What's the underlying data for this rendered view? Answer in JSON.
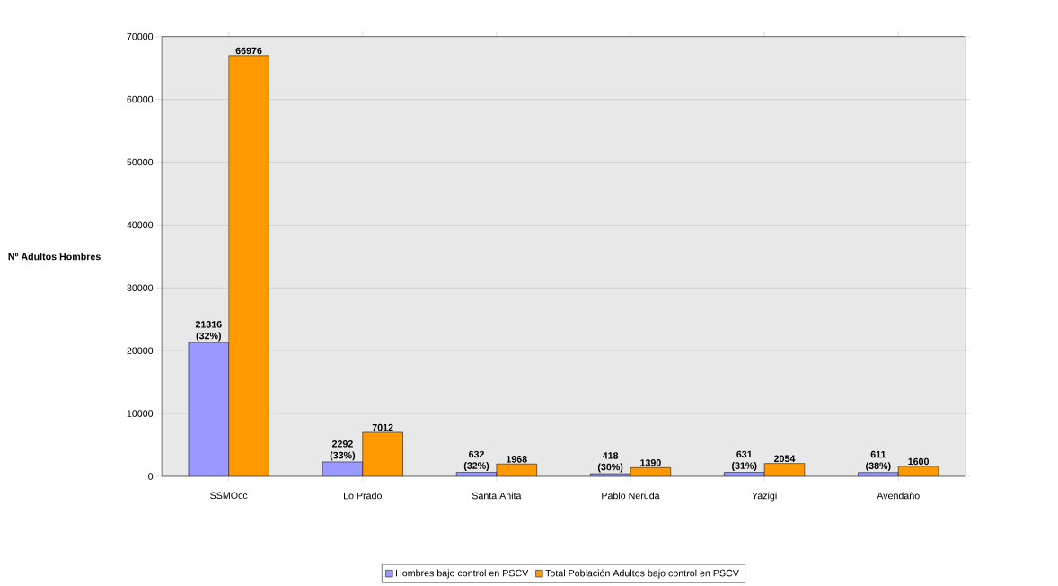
{
  "chart_data": {
    "type": "bar",
    "ylabel": "Nº Adultos Hombres",
    "categories": [
      "SSMOcc",
      "Lo Prado",
      "Santa Anita",
      "Pablo Neruda",
      "Yazigi",
      "Avendaño"
    ],
    "series": [
      {
        "name": "Hombres bajo control en PSCV",
        "color": "#9999ff",
        "values": [
          21316,
          2292,
          632,
          418,
          631,
          611
        ],
        "value_labels": [
          "21316 (32%)",
          "2292 (33%)",
          "632 (32%)",
          "418 (30%)",
          "631 (31%)",
          "611 (38%)"
        ]
      },
      {
        "name": "Total Población Adultos bajo control en PSCV",
        "color": "#ff9900",
        "values": [
          66976,
          7012,
          1968,
          1390,
          2054,
          1600
        ],
        "value_labels": [
          "66976",
          "7012",
          "1968",
          "1390",
          "2054",
          "1600"
        ]
      }
    ],
    "ylim": [
      0,
      70000
    ],
    "yticks": [
      0,
      10000,
      20000,
      30000,
      40000,
      50000,
      60000,
      70000
    ],
    "grid": "y",
    "legend": "bottom"
  }
}
